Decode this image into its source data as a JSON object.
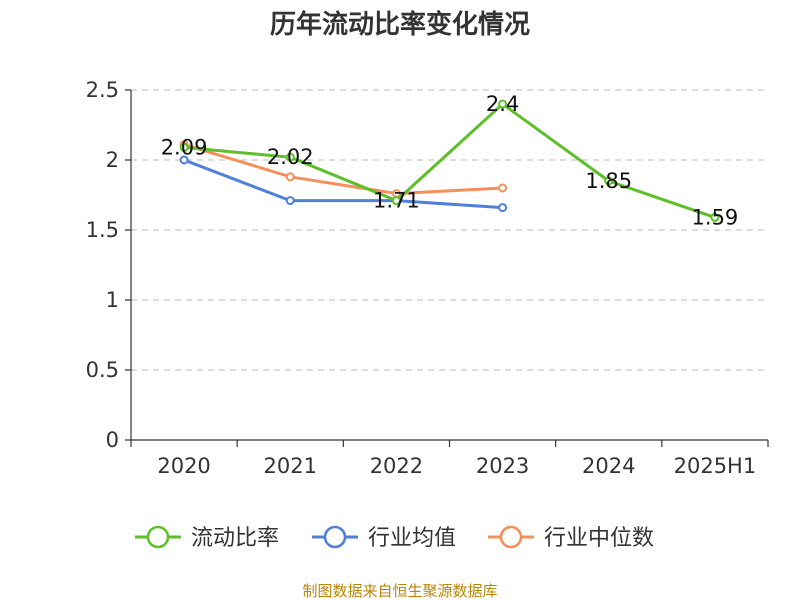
{
  "chart_data": {
    "type": "line",
    "title": "历年流动比率变化情况",
    "categories": [
      "2020",
      "2021",
      "2022",
      "2023",
      "2024",
      "2025H1"
    ],
    "ylim": [
      0,
      2.5
    ],
    "yticks": [
      "0",
      "0.5",
      "1",
      "1.5",
      "2",
      "2.5"
    ],
    "grid": true,
    "legend_position": "bottom",
    "series": [
      {
        "name": "流动比率",
        "color": "#5dbf2a",
        "values": [
          2.09,
          2.02,
          1.71,
          2.4,
          1.85,
          1.59
        ],
        "labels": [
          "2.09",
          "2.02",
          "1.71",
          "2.4",
          "1.85",
          "1.59"
        ]
      },
      {
        "name": "行业均值",
        "color": "#4e7fd9",
        "values": [
          2.0,
          1.71,
          1.71,
          1.66,
          null,
          null
        ]
      },
      {
        "name": "行业中位数",
        "color": "#f5905a",
        "values": [
          2.11,
          1.88,
          1.76,
          1.8,
          null,
          null
        ]
      }
    ]
  },
  "source": "制图数据来自恒生聚源数据库"
}
